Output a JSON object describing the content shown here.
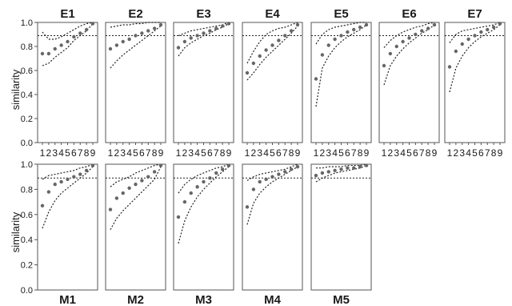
{
  "ylabel": "similarity",
  "yticks": [
    "0.0",
    "0.2",
    "0.4",
    "0.6",
    "0.8",
    "1.0"
  ],
  "xticks": [
    "1",
    "2",
    "3",
    "4",
    "5",
    "6",
    "7",
    "8",
    "9"
  ],
  "reference_line": 0.89,
  "chart_data": [
    {
      "type": "scatter",
      "title": "E1",
      "x": [
        1,
        2,
        3,
        4,
        5,
        6,
        7,
        8,
        9
      ],
      "ylabel": "similarity",
      "ylim": [
        0,
        1
      ],
      "series": [
        {
          "values": [
            0.74,
            0.74,
            0.78,
            0.81,
            0.84,
            0.88,
            0.91,
            0.94,
            0.99
          ]
        },
        {
          "values": [
            0.64,
            0.66,
            0.71,
            0.75,
            0.79,
            0.85,
            0.89,
            0.93,
            0.99
          ]
        },
        {
          "values": [
            0.92,
            0.86,
            0.86,
            0.88,
            0.91,
            0.94,
            0.97,
            0.99,
            1.0
          ]
        }
      ]
    },
    {
      "type": "scatter",
      "title": "E2",
      "x": [
        1,
        2,
        3,
        4,
        5,
        6,
        7,
        8,
        9
      ],
      "ylim": [
        0,
        1
      ],
      "series": [
        {
          "values": [
            0.78,
            0.81,
            0.84,
            0.86,
            0.89,
            0.91,
            0.93,
            0.95,
            0.98
          ]
        },
        {
          "values": [
            0.62,
            0.68,
            0.73,
            0.77,
            0.81,
            0.85,
            0.89,
            0.93,
            0.97
          ]
        },
        {
          "values": [
            0.96,
            0.97,
            0.98,
            0.98,
            0.99,
            0.99,
            1.0,
            1.0,
            1.0
          ]
        }
      ]
    },
    {
      "type": "scatter",
      "title": "E3",
      "x": [
        1,
        2,
        3,
        4,
        5,
        6,
        7,
        8,
        9
      ],
      "ylim": [
        0,
        1
      ],
      "series": [
        {
          "values": [
            0.79,
            0.84,
            0.87,
            0.89,
            0.91,
            0.93,
            0.95,
            0.97,
            0.99
          ]
        },
        {
          "values": [
            0.72,
            0.79,
            0.83,
            0.86,
            0.89,
            0.91,
            0.94,
            0.96,
            0.99
          ]
        },
        {
          "values": [
            0.89,
            0.91,
            0.93,
            0.94,
            0.95,
            0.96,
            0.97,
            0.98,
            1.0
          ]
        }
      ]
    },
    {
      "type": "scatter",
      "title": "E4",
      "x": [
        1,
        2,
        3,
        4,
        5,
        6,
        7,
        8,
        9
      ],
      "ylim": [
        0,
        1
      ],
      "series": [
        {
          "values": [
            0.58,
            0.66,
            0.72,
            0.77,
            0.81,
            0.85,
            0.89,
            0.93,
            0.98
          ]
        },
        {
          "values": [
            0.52,
            0.58,
            0.65,
            0.71,
            0.76,
            0.81,
            0.86,
            0.91,
            0.97
          ]
        },
        {
          "values": [
            0.66,
            0.76,
            0.84,
            0.9,
            0.93,
            0.95,
            0.96,
            0.98,
            1.0
          ]
        }
      ]
    },
    {
      "type": "scatter",
      "title": "E5",
      "x": [
        1,
        2,
        3,
        4,
        5,
        6,
        7,
        8,
        9
      ],
      "ylim": [
        0,
        1
      ],
      "series": [
        {
          "values": [
            0.53,
            0.73,
            0.81,
            0.86,
            0.89,
            0.92,
            0.94,
            0.96,
            0.98
          ]
        },
        {
          "values": [
            0.3,
            0.62,
            0.72,
            0.79,
            0.84,
            0.88,
            0.91,
            0.94,
            0.98
          ]
        },
        {
          "values": [
            0.82,
            0.9,
            0.94,
            0.96,
            0.97,
            0.98,
            0.99,
            1.0,
            1.0
          ]
        }
      ]
    },
    {
      "type": "scatter",
      "title": "E6",
      "x": [
        1,
        2,
        3,
        4,
        5,
        6,
        7,
        8,
        9
      ],
      "ylim": [
        0,
        1
      ],
      "series": [
        {
          "values": [
            0.64,
            0.74,
            0.8,
            0.84,
            0.87,
            0.9,
            0.93,
            0.95,
            0.98
          ]
        },
        {
          "values": [
            0.48,
            0.64,
            0.72,
            0.78,
            0.83,
            0.87,
            0.91,
            0.94,
            0.98
          ]
        },
        {
          "values": [
            0.79,
            0.85,
            0.89,
            0.92,
            0.94,
            0.96,
            0.97,
            0.99,
            1.0
          ]
        }
      ]
    },
    {
      "type": "scatter",
      "title": "E7",
      "x": [
        1,
        2,
        3,
        4,
        5,
        6,
        7,
        8,
        9
      ],
      "ylim": [
        0,
        1
      ],
      "series": [
        {
          "values": [
            0.63,
            0.76,
            0.82,
            0.86,
            0.89,
            0.92,
            0.94,
            0.96,
            0.99
          ]
        },
        {
          "values": [
            0.42,
            0.62,
            0.72,
            0.79,
            0.84,
            0.88,
            0.91,
            0.94,
            0.98
          ]
        },
        {
          "values": [
            0.83,
            0.9,
            0.93,
            0.94,
            0.95,
            0.96,
            0.97,
            0.98,
            1.0
          ]
        }
      ]
    },
    {
      "type": "scatter",
      "title": "M1",
      "x": [
        1,
        2,
        3,
        4,
        5,
        6,
        7,
        8,
        9
      ],
      "ylabel": "similarity",
      "ylim": [
        0,
        1
      ],
      "series": [
        {
          "values": [
            0.67,
            0.78,
            0.84,
            0.86,
            0.88,
            0.9,
            0.92,
            0.95,
            0.99
          ]
        },
        {
          "values": [
            0.49,
            0.62,
            0.71,
            0.77,
            0.81,
            0.85,
            0.89,
            0.93,
            0.98
          ]
        },
        {
          "values": [
            0.88,
            0.91,
            0.92,
            0.93,
            0.94,
            0.95,
            0.97,
            0.98,
            1.0
          ]
        }
      ]
    },
    {
      "type": "scatter",
      "title": "M2",
      "x": [
        1,
        2,
        3,
        4,
        5,
        6,
        7,
        8,
        9
      ],
      "ylim": [
        0,
        1
      ],
      "series": [
        {
          "values": [
            0.64,
            0.73,
            0.77,
            0.81,
            0.84,
            0.87,
            0.9,
            0.94,
            0.99
          ]
        },
        {
          "values": [
            0.48,
            0.57,
            0.63,
            0.68,
            0.73,
            0.78,
            0.83,
            0.88,
            0.98
          ]
        },
        {
          "values": [
            0.82,
            0.86,
            0.88,
            0.9,
            0.93,
            0.95,
            0.97,
            0.99,
            1.0
          ]
        }
      ]
    },
    {
      "type": "scatter",
      "title": "M3",
      "x": [
        1,
        2,
        3,
        4,
        5,
        6,
        7,
        8,
        9
      ],
      "ylim": [
        0,
        1
      ],
      "series": [
        {
          "values": [
            0.58,
            0.7,
            0.77,
            0.82,
            0.86,
            0.89,
            0.93,
            0.96,
            0.99
          ]
        },
        {
          "values": [
            0.37,
            0.55,
            0.66,
            0.74,
            0.8,
            0.85,
            0.9,
            0.94,
            0.98
          ]
        },
        {
          "values": [
            0.77,
            0.84,
            0.88,
            0.91,
            0.93,
            0.95,
            0.97,
            0.98,
            1.0
          ]
        }
      ]
    },
    {
      "type": "scatter",
      "title": "M4",
      "x": [
        1,
        2,
        3,
        4,
        5,
        6,
        7,
        8,
        9
      ],
      "ylim": [
        0,
        1
      ],
      "series": [
        {
          "values": [
            0.66,
            0.8,
            0.86,
            0.88,
            0.9,
            0.92,
            0.94,
            0.96,
            0.98
          ]
        },
        {
          "values": [
            0.52,
            0.69,
            0.77,
            0.82,
            0.86,
            0.89,
            0.92,
            0.95,
            0.98
          ]
        },
        {
          "values": [
            0.87,
            0.9,
            0.92,
            0.93,
            0.94,
            0.95,
            0.96,
            0.98,
            1.0
          ]
        }
      ]
    },
    {
      "type": "scatter",
      "title": "M5",
      "x": [
        1,
        2,
        3,
        4,
        5,
        6,
        7,
        8,
        9
      ],
      "ylim": [
        0,
        1
      ],
      "series": [
        {
          "values": [
            0.91,
            0.93,
            0.94,
            0.95,
            0.96,
            0.97,
            0.97,
            0.98,
            0.99
          ]
        },
        {
          "values": [
            0.86,
            0.89,
            0.91,
            0.93,
            0.94,
            0.95,
            0.96,
            0.97,
            0.99
          ]
        },
        {
          "values": [
            0.97,
            0.97,
            0.98,
            0.98,
            0.98,
            0.99,
            0.99,
            0.99,
            1.0
          ]
        }
      ]
    }
  ]
}
